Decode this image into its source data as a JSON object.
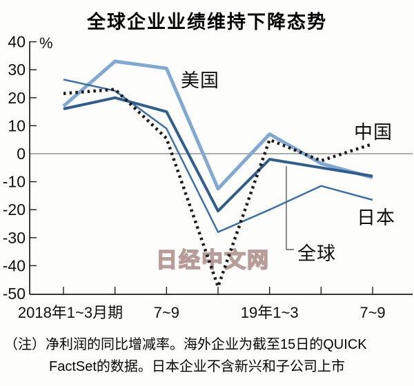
{
  "title": "全球企业业绩维持下降态势",
  "watermark": "日经中文网",
  "labels": {
    "usa": "美国",
    "china": "中国",
    "japan": "日本",
    "global": "全球"
  },
  "footnote": {
    "prefix": "（注）",
    "line1": "净利润的同比增减率。海外企业为截至15日的QUICK",
    "line2": "FactSet的数据。日本企业不含新兴和子公司上市"
  },
  "chart_data": {
    "type": "line",
    "title": "全球企业业绩维持下降态势",
    "ylabel": "%",
    "ylim": [
      -50,
      40
    ],
    "y_ticks": [
      40,
      30,
      20,
      10,
      0,
      -10,
      -20,
      -30,
      -40,
      -50
    ],
    "x_tick_count": 7,
    "x_tick_labels": [
      {
        "index": 0,
        "label": "2018年1~3月期"
      },
      {
        "index": 2,
        "label": "7~9"
      },
      {
        "index": 4,
        "label": "19年1~3"
      },
      {
        "index": 6,
        "label": "7~9"
      }
    ],
    "grid": "zero-line-only",
    "legend": "inline-labels-on-chart",
    "series": [
      {
        "key": "usa",
        "name": "美国",
        "color": "#7fa8d2",
        "width": 5,
        "style": "solid",
        "values": [
          17,
          33,
          30.5,
          -12.5,
          7,
          -3.5,
          -8.5
        ]
      },
      {
        "key": "japan",
        "name": "日本",
        "color": "#3a6fae",
        "width": 2.5,
        "style": "solid",
        "values": [
          26.5,
          22.5,
          9,
          -28,
          -20,
          -11.5,
          -16.5
        ]
      },
      {
        "key": "global",
        "name": "全球",
        "color": "#2d5e8e",
        "width": 4,
        "style": "solid",
        "values": [
          16,
          20,
          15,
          -20.5,
          -2,
          -5,
          -8
        ]
      },
      {
        "key": "china",
        "name": "中国",
        "color": "#1a1a1a",
        "width": 4.5,
        "style": "dotted",
        "values": [
          21.5,
          23,
          5.5,
          -47.5,
          5,
          -2.5,
          3.5
        ]
      }
    ]
  }
}
